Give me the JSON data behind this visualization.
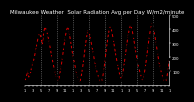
{
  "title": "Milwaukee Weather  Solar Radiation Avg per Day W/m2/minute",
  "title_fontsize": 4.0,
  "line_color": "#dd0000",
  "marker_color": "#000000",
  "bg_color": "#000000",
  "plot_bg_color": "#000000",
  "grid_color": "#888888",
  "axis_color": "#ffffff",
  "text_color": "#ffffff",
  "ylim": [
    0,
    500
  ],
  "yticks": [
    100,
    200,
    300,
    400,
    500
  ],
  "ytick_labels": [
    "100",
    "200",
    "300",
    "400",
    "500"
  ],
  "values": [
    30,
    60,
    100,
    55,
    80,
    130,
    160,
    200,
    250,
    300,
    350,
    370,
    340,
    290,
    380,
    420,
    390,
    360,
    310,
    260,
    200,
    160,
    110,
    70,
    50,
    30,
    80,
    130,
    200,
    270,
    340,
    390,
    420,
    380,
    320,
    260,
    200,
    160,
    110,
    70,
    40,
    20,
    60,
    120,
    190,
    270,
    340,
    390,
    380,
    330,
    280,
    230,
    175,
    130,
    90,
    60,
    30,
    20,
    50,
    110,
    190,
    270,
    340,
    400,
    420,
    380,
    330,
    270,
    210,
    160,
    110,
    70,
    45,
    80,
    140,
    210,
    280,
    350,
    400,
    430,
    400,
    350,
    290,
    230,
    170,
    130,
    90,
    60,
    35,
    70,
    130,
    200,
    280,
    350,
    410,
    440,
    410,
    360,
    300,
    240,
    175,
    130,
    90,
    60,
    30,
    20,
    50,
    110,
    185
  ],
  "x_tick_positions": [
    0,
    3,
    6,
    9,
    12,
    15,
    18,
    21,
    24,
    27,
    30,
    33,
    36,
    39,
    42,
    45,
    48,
    51,
    54,
    57,
    60,
    63,
    66,
    69,
    72,
    75,
    78,
    81,
    84,
    87,
    90,
    93,
    96,
    99,
    102,
    105,
    108
  ],
  "x_tick_labels": [
    "1",
    "",
    "3",
    "",
    "5",
    "",
    "7",
    "",
    "9",
    "",
    "11",
    "",
    "1",
    "",
    "3",
    "",
    "5",
    "",
    "7",
    "",
    "9",
    "",
    "11",
    "",
    "1",
    "",
    "3",
    "",
    "5",
    "",
    "7",
    "",
    "9",
    "",
    "11",
    "",
    "1"
  ],
  "vgrid_positions": [
    12,
    24,
    36,
    48,
    60,
    72,
    84,
    96
  ]
}
